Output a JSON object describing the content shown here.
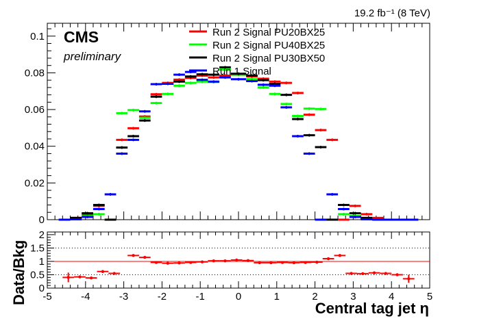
{
  "lumi_label": "19.2 fb⁻¹ (8 TeV)",
  "cms_label": "CMS",
  "preliminary_label": "preliminary",
  "chart_data": [
    {
      "type": "line",
      "panel": "main",
      "title": "",
      "xlabel": "",
      "ylabel": "",
      "xlim": [
        -5,
        5
      ],
      "ylim": [
        0,
        0.107
      ],
      "grid": false,
      "legend": "top-center",
      "x_bin_edges": [
        -4.7,
        -4.4,
        -4.1,
        -3.8,
        -3.5,
        -3.2,
        -2.9,
        -2.6,
        -2.3,
        -2.0,
        -1.7,
        -1.4,
        -1.1,
        -0.8,
        -0.5,
        -0.2,
        0.2,
        0.5,
        0.8,
        1.1,
        1.4,
        1.7,
        2.0,
        2.3,
        2.6,
        2.9,
        3.2,
        3.5,
        3.8,
        4.1,
        4.4,
        4.7
      ],
      "y_ticks": [
        "0",
        "0.02",
        "0.04",
        "0.06",
        "0.08",
        "0.1"
      ],
      "series": [
        {
          "name": "Run 2 Signal PU20BX25",
          "color": "#ff0000",
          "values": [
            0,
            0.001,
            0.003,
            0.0075,
            0,
            0.0435,
            0.0498,
            0.0562,
            0.0683,
            0.0745,
            0.0763,
            0.0772,
            0.0785,
            0.0775,
            0.0785,
            0.079,
            0.078,
            0.0768,
            0.0752,
            0.0745,
            0.069,
            0.0572,
            0.0488,
            0.0435,
            0,
            0.0075,
            0.003,
            0.001,
            0,
            0,
            0
          ]
        },
        {
          "name": "Run 2 Signal PU40BX25",
          "color": "#00ff00",
          "values": [
            0,
            0.0005,
            0.002,
            0.003,
            0,
            0.058,
            0.0597,
            0.0555,
            0.0635,
            0.0685,
            0.073,
            0.0745,
            0.0752,
            0.075,
            0.0818,
            0.079,
            0.0765,
            0.072,
            0.0685,
            0.063,
            0.0565,
            0.0605,
            0.0603,
            0,
            0.003,
            0.002,
            0.0005,
            0,
            0,
            0,
            0
          ]
        },
        {
          "name": "Run 2 Signal PU30BX50",
          "color": "#000000",
          "values": [
            0,
            0.001,
            0.0035,
            0.008,
            0,
            0.0393,
            0.0455,
            0.054,
            0.067,
            0.074,
            0.0752,
            0.078,
            0.0792,
            0.079,
            0.083,
            0.0795,
            0.0785,
            0.076,
            0.074,
            0.068,
            0.0548,
            0.046,
            0.0395,
            0,
            0.008,
            0.0035,
            0.001,
            0,
            0,
            0,
            0
          ]
        },
        {
          "name": "Run 1 Signal",
          "color": "#0000ff",
          "values": [
            0,
            0.0002,
            0.0015,
            0.0058,
            0.0138,
            0.036,
            0.0435,
            0.059,
            0.0738,
            0.074,
            0.079,
            0.0805,
            0.0762,
            0.0752,
            0.0775,
            0.0765,
            0.0755,
            0.0735,
            0.073,
            0.0612,
            0.0455,
            0.036,
            0,
            0.0138,
            0.0058,
            0.0015,
            0.0002,
            0,
            0,
            0,
            0
          ]
        }
      ]
    },
    {
      "type": "scatter",
      "panel": "ratio",
      "title": "",
      "xlabel": "Central tag jet η",
      "ylabel": "Data/Bkg",
      "xlim": [
        -5,
        5
      ],
      "ylim": [
        0,
        2.1
      ],
      "grid": false,
      "reference_lines": [
        1.0,
        0.5,
        1.5
      ],
      "x_ticks": [
        "-5",
        "-4",
        "-3",
        "-2",
        "-1",
        "0",
        "1",
        "2",
        "3",
        "4",
        "5"
      ],
      "y_ticks": [
        "0",
        "0.5",
        "1",
        "1.5",
        "2"
      ],
      "series": [
        {
          "name": "ratio",
          "color": "#ff0000",
          "x": [
            -4.45,
            -4.15,
            -3.85,
            -3.55,
            -3.25,
            -2.75,
            -2.45,
            -2.15,
            -1.85,
            -1.55,
            -1.25,
            -0.95,
            -0.65,
            -0.35,
            -0.05,
            0.25,
            0.55,
            0.85,
            1.15,
            1.45,
            1.75,
            2.05,
            2.35,
            2.65,
            2.95,
            3.25,
            3.55,
            3.85,
            4.15,
            4.45
          ],
          "values": [
            0.4,
            0.42,
            0.38,
            0.62,
            0.55,
            1.22,
            1.15,
            0.96,
            0.93,
            0.94,
            0.96,
            0.98,
            1.02,
            1.02,
            1.05,
            1.03,
            0.95,
            0.95,
            0.96,
            0.95,
            0.96,
            0.97,
            1.1,
            1.22,
            0.55,
            0.54,
            0.57,
            0.55,
            0.5,
            0.35
          ],
          "errors": [
            0.18,
            0.05,
            0.04,
            0.05,
            0.05,
            0.04,
            0.03,
            0.03,
            0.03,
            0.03,
            0.03,
            0.03,
            0.03,
            0.03,
            0.03,
            0.03,
            0.03,
            0.03,
            0.03,
            0.03,
            0.03,
            0.03,
            0.03,
            0.04,
            0.05,
            0.05,
            0.04,
            0.05,
            0.05,
            0.15
          ]
        }
      ]
    }
  ]
}
